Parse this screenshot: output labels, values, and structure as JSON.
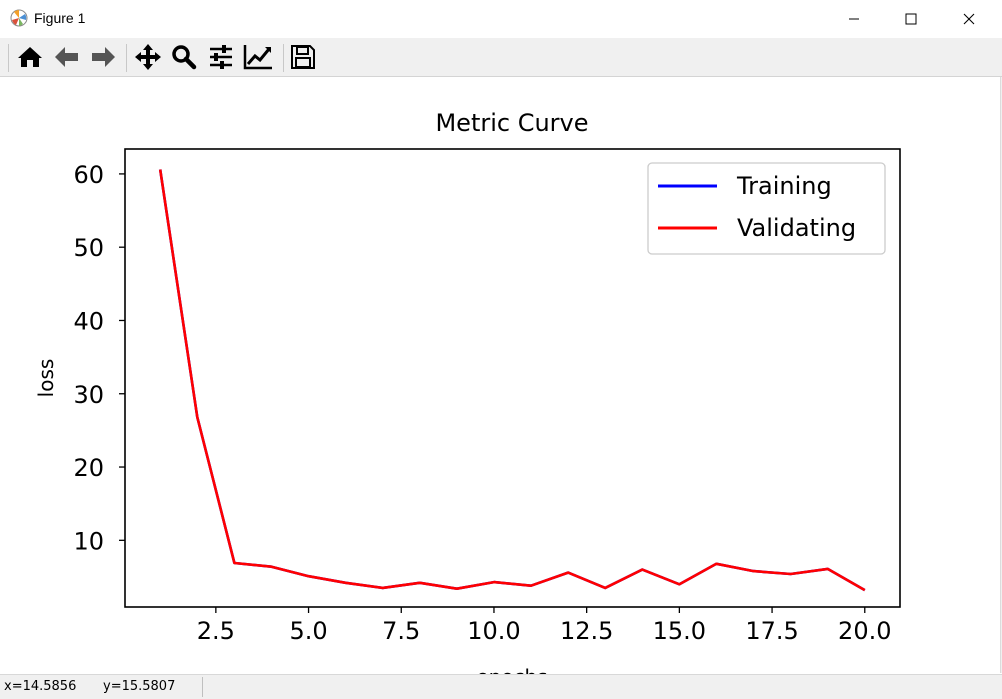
{
  "window": {
    "title": "Figure 1",
    "minimize_icon": "minimize-icon",
    "maximize_icon": "maximize-icon",
    "close_icon": "close-icon"
  },
  "toolbar": {
    "buttons": [
      {
        "name": "home-button",
        "icon": "home-icon"
      },
      {
        "name": "back-button",
        "icon": "arrow-left-icon"
      },
      {
        "name": "forward-button",
        "icon": "arrow-right-icon"
      },
      {
        "name": "pan-button",
        "icon": "move-icon"
      },
      {
        "name": "zoom-button",
        "icon": "magnifier-icon"
      },
      {
        "name": "configure-subplots-button",
        "icon": "sliders-icon"
      },
      {
        "name": "edit-axis-button",
        "icon": "chart-line-icon"
      },
      {
        "name": "save-button",
        "icon": "floppy-disk-icon"
      }
    ]
  },
  "status": {
    "x_readout": "x=14.5856",
    "y_readout": "y=15.5807"
  },
  "chart_data": {
    "type": "line",
    "title": "Metric Curve",
    "xlabel": "epochs",
    "ylabel": "loss",
    "xlim": [
      0.05,
      20.95
    ],
    "ylim": [
      0.9,
      63.4
    ],
    "xticks": [
      2.5,
      5.0,
      7.5,
      10.0,
      12.5,
      15.0,
      17.5,
      20.0
    ],
    "xtick_labels": [
      "2.5",
      "5.0",
      "7.5",
      "10.0",
      "12.5",
      "15.0",
      "17.5",
      "20.0"
    ],
    "yticks": [
      10,
      20,
      30,
      40,
      50,
      60
    ],
    "ytick_labels": [
      "10",
      "20",
      "30",
      "40",
      "50",
      "60"
    ],
    "legend_position": "top-right",
    "grid": false,
    "x": [
      1,
      2,
      3,
      4,
      5,
      6,
      7,
      8,
      9,
      10,
      11,
      12,
      13,
      14,
      15,
      16,
      17,
      18,
      19,
      20
    ],
    "series": [
      {
        "name": "Training",
        "color": "#0000ff",
        "values": [
          60.6,
          26.8,
          6.9,
          6.4,
          5.1,
          4.2,
          3.5,
          4.2,
          3.4,
          4.3,
          3.8,
          5.6,
          3.5,
          6.0,
          4.0,
          6.8,
          5.8,
          5.4,
          6.1,
          3.2
        ]
      },
      {
        "name": "Validating",
        "color": "#ff0000",
        "values": [
          60.6,
          26.8,
          6.9,
          6.4,
          5.1,
          4.2,
          3.5,
          4.2,
          3.4,
          4.3,
          3.8,
          5.6,
          3.5,
          6.0,
          4.0,
          6.8,
          5.8,
          5.4,
          6.1,
          3.2
        ]
      }
    ]
  }
}
